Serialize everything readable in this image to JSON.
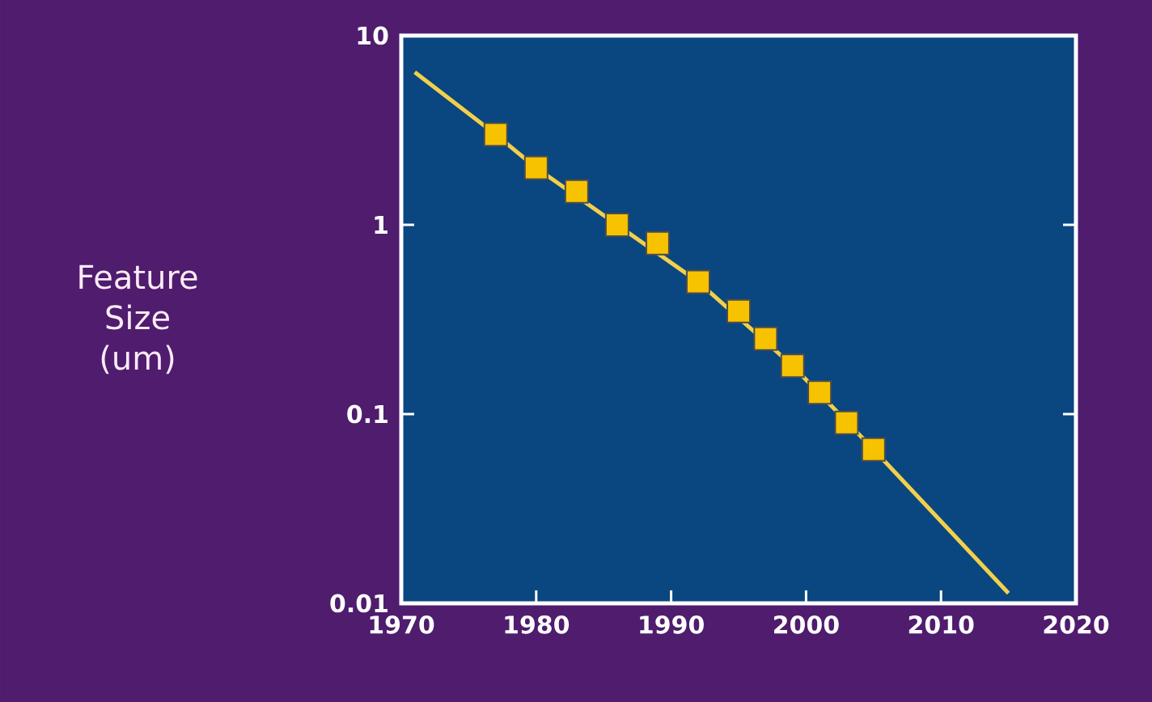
{
  "chart_data": {
    "type": "scatter",
    "ylabel": "Feature Size (um)",
    "log": "y",
    "xlim": [
      1970,
      2020
    ],
    "ylim": [
      0.01,
      10
    ],
    "xticks": [
      1970,
      1980,
      1990,
      2000,
      2010,
      2020
    ],
    "yticks": [
      0.01,
      0.1,
      1,
      10
    ],
    "grid": false,
    "series": [
      {
        "type": "line",
        "color": "#f2d04a",
        "line_style": "solid",
        "marker": "none",
        "x": [
          1971,
          1977,
          1980,
          1986,
          1992,
          1999,
          2005,
          2015
        ],
        "values": [
          6.4,
          3,
          2,
          1,
          0.5,
          0.18,
          0.065,
          0.0113
        ]
      },
      {
        "color": "#f7c300",
        "marker": "square",
        "x": [
          1977,
          1980,
          1983,
          1986,
          1989,
          1992,
          1995,
          1997,
          1999,
          2001,
          2003,
          2005
        ],
        "values": [
          3,
          2,
          1.5,
          1,
          0.8,
          0.5,
          0.35,
          0.25,
          0.18,
          0.13,
          0.09,
          0.065
        ]
      }
    ]
  }
}
